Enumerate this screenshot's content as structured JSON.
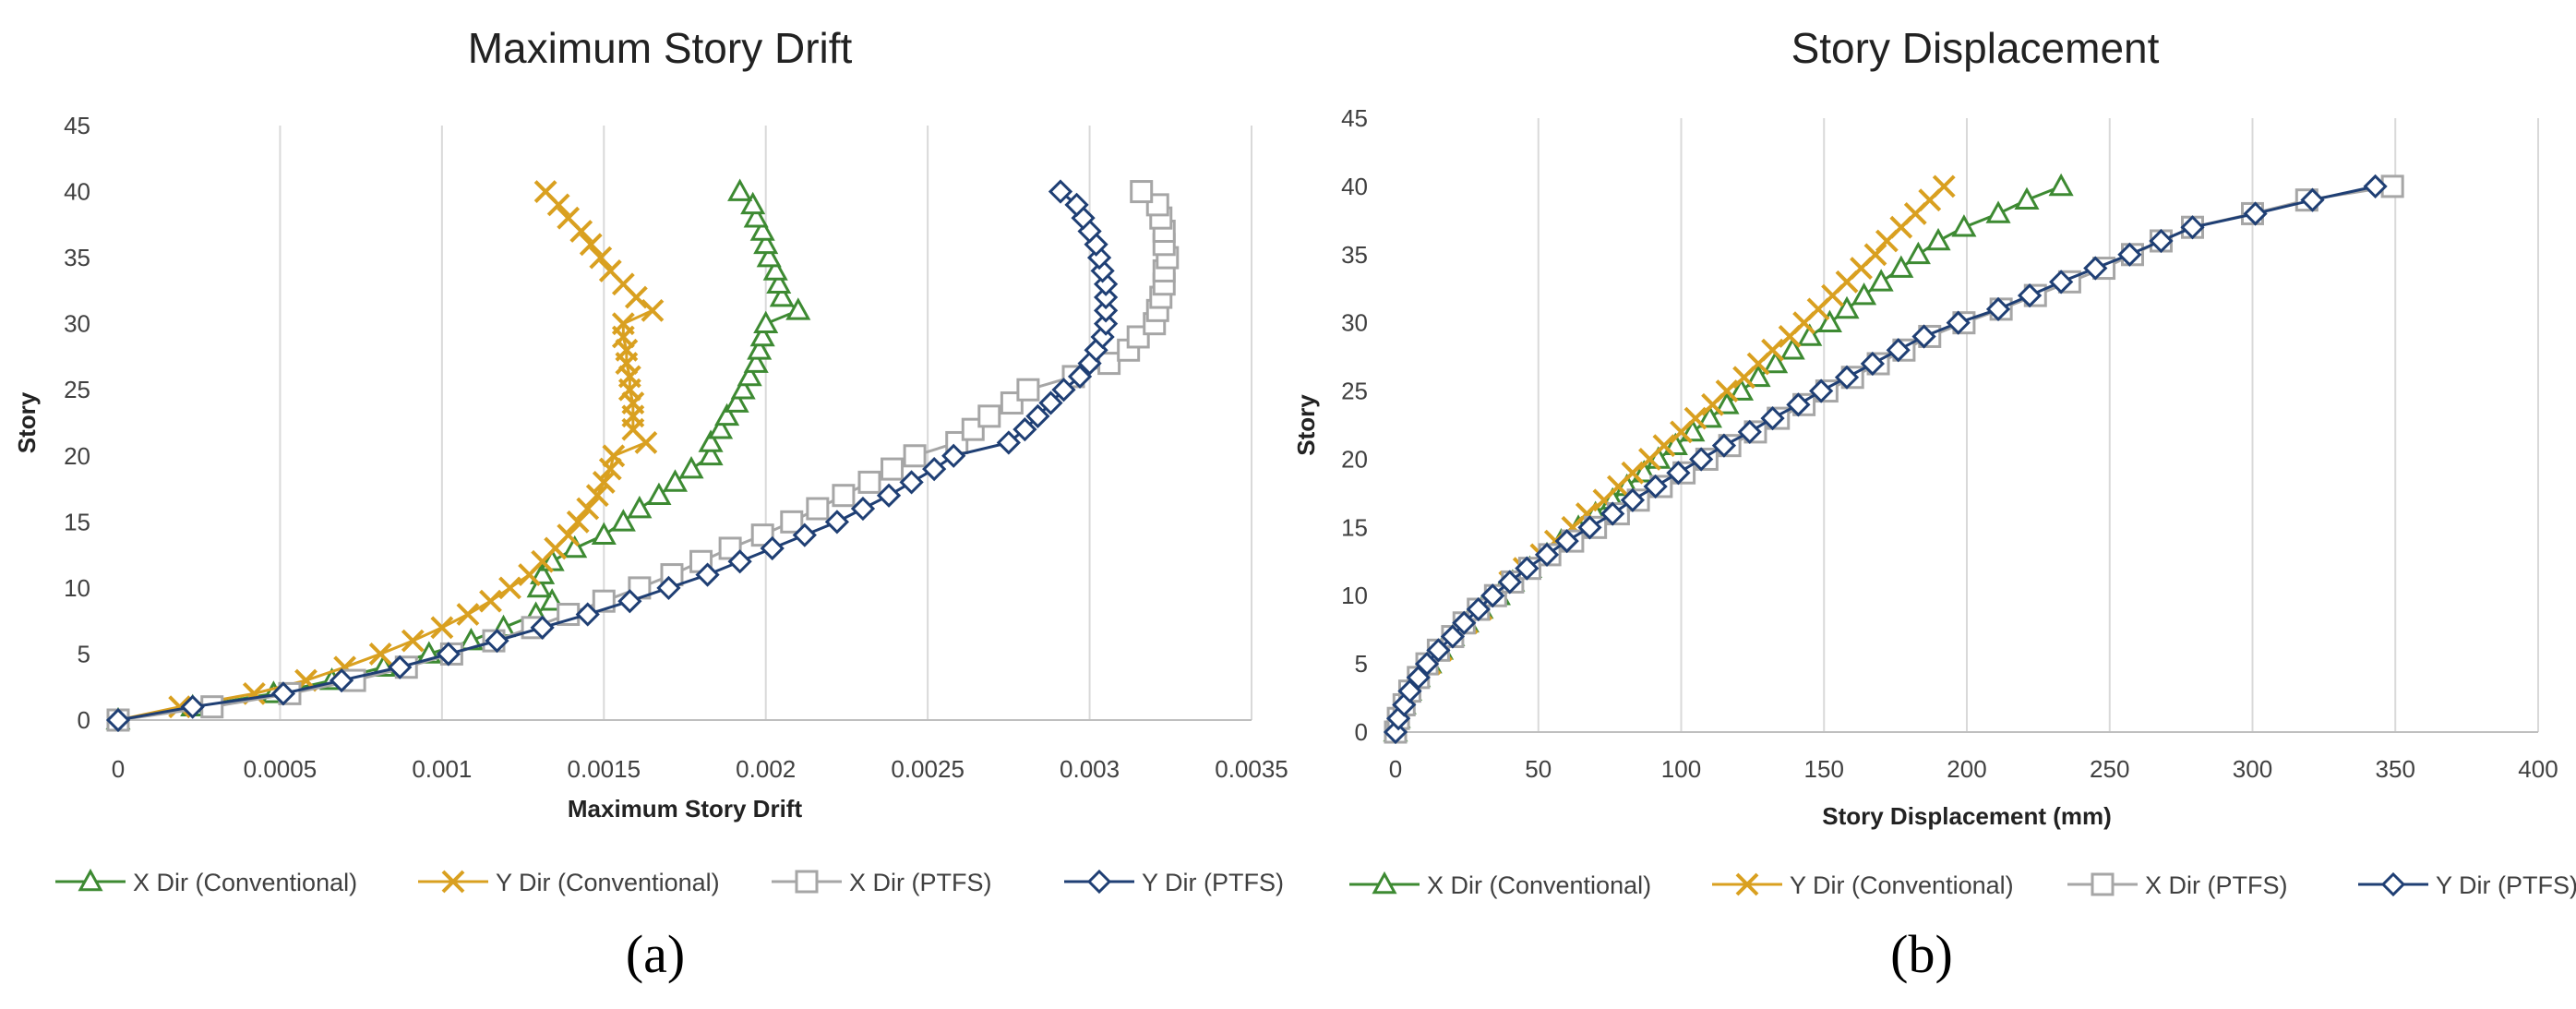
{
  "panel_labels": [
    "(a)",
    "(b)"
  ],
  "chart_data": [
    {
      "type": "line",
      "title": "Maximum Story Drift",
      "xlabel": "Maximum Story Drift",
      "ylabel": "Story",
      "xlim": [
        0,
        0.0035
      ],
      "ylim": [
        0,
        45
      ],
      "xticks": [
        0,
        0.0005,
        0.001,
        0.0015,
        0.002,
        0.0025,
        0.003,
        0.0035
      ],
      "xtick_labels": [
        "0",
        "0.0005",
        "0.001",
        "0.0015",
        "0.002",
        "0.0025",
        "0.003",
        "0.0035"
      ],
      "yticks": [
        0,
        5,
        10,
        15,
        20,
        25,
        30,
        35,
        40,
        45
      ],
      "ytick_labels": [
        "0",
        "5",
        "10",
        "15",
        "20",
        "25",
        "30",
        "35",
        "40",
        "45"
      ],
      "grid": "vertical",
      "legend_position": "bottom",
      "y": [
        0,
        1,
        2,
        3,
        4,
        5,
        6,
        7,
        8,
        9,
        10,
        11,
        12,
        13,
        14,
        15,
        16,
        17,
        18,
        19,
        20,
        21,
        22,
        23,
        24,
        25,
        26,
        27,
        28,
        29,
        30,
        31,
        32,
        33,
        34,
        35,
        36,
        37,
        38,
        39,
        40
      ],
      "series": [
        {
          "name": "X Dir (Conventional)",
          "color": "#3d8a32",
          "marker": "triangle",
          "x": [
            0,
            0.00023,
            0.00048,
            0.00066,
            0.00082,
            0.00096,
            0.00109,
            0.00119,
            0.00129,
            0.00134,
            0.0013,
            0.00131,
            0.00134,
            0.00141,
            0.0015,
            0.00156,
            0.00161,
            0.00167,
            0.00172,
            0.00177,
            0.00183,
            0.00183,
            0.00186,
            0.00188,
            0.00191,
            0.00193,
            0.00195,
            0.00197,
            0.00198,
            0.00199,
            0.002,
            0.0021,
            0.00205,
            0.00204,
            0.00203,
            0.00201,
            0.002,
            0.00199,
            0.00197,
            0.00196,
            0.00192
          ]
        },
        {
          "name": "Y Dir (Conventional)",
          "color": "#d9a020",
          "marker": "x",
          "x": [
            0,
            0.00019,
            0.00042,
            0.00058,
            0.0007,
            0.00081,
            0.00091,
            0.001,
            0.00108,
            0.00115,
            0.00121,
            0.00127,
            0.00131,
            0.00135,
            0.00139,
            0.00142,
            0.00145,
            0.00148,
            0.0015,
            0.00152,
            0.00153,
            0.00163,
            0.00159,
            0.00159,
            0.00159,
            0.00158,
            0.00158,
            0.00157,
            0.00157,
            0.00156,
            0.00156,
            0.00165,
            0.0016,
            0.00156,
            0.00152,
            0.00149,
            0.00146,
            0.00143,
            0.00139,
            0.00136,
            0.00132
          ]
        },
        {
          "name": "X Dir (PTFS)",
          "color": "#a6a6a6",
          "marker": "square",
          "x": [
            0,
            0.00029,
            0.00053,
            0.00073,
            0.00089,
            0.00103,
            0.00116,
            0.00128,
            0.00139,
            0.0015,
            0.00161,
            0.00171,
            0.0018,
            0.00189,
            0.00199,
            0.00208,
            0.00216,
            0.00224,
            0.00232,
            0.00239,
            0.00246,
            0.00259,
            0.00264,
            0.00269,
            0.00276,
            0.00281,
            0.00295,
            0.00306,
            0.00312,
            0.00315,
            0.0032,
            0.00321,
            0.00322,
            0.00323,
            0.00323,
            0.00324,
            0.00323,
            0.00323,
            0.00322,
            0.00321,
            0.00316
          ]
        },
        {
          "name": "Y Dir (PTFS)",
          "color": "#1f3f74",
          "marker": "diamond",
          "x": [
            0,
            0.00023,
            0.00051,
            0.00069,
            0.00087,
            0.00102,
            0.00117,
            0.00131,
            0.00145,
            0.00158,
            0.0017,
            0.00182,
            0.00192,
            0.00202,
            0.00212,
            0.00222,
            0.0023,
            0.00238,
            0.00245,
            0.00252,
            0.00258,
            0.00275,
            0.0028,
            0.00284,
            0.00288,
            0.00292,
            0.00297,
            0.003,
            0.00302,
            0.00304,
            0.00305,
            0.00305,
            0.00305,
            0.00305,
            0.00304,
            0.00303,
            0.00302,
            0.003,
            0.00298,
            0.00296,
            0.00291
          ]
        }
      ]
    },
    {
      "type": "line",
      "title": "Story Displacement",
      "xlabel": "Story Displacement (mm)",
      "ylabel": "Story",
      "xlim": [
        0,
        400
      ],
      "ylim": [
        0,
        45
      ],
      "xticks": [
        0,
        50,
        100,
        150,
        200,
        250,
        300,
        350,
        400
      ],
      "xtick_labels": [
        "0",
        "50",
        "100",
        "150",
        "200",
        "250",
        "300",
        "350",
        "400"
      ],
      "yticks": [
        0,
        5,
        10,
        15,
        20,
        25,
        30,
        35,
        40,
        45
      ],
      "ytick_labels": [
        "0",
        "5",
        "10",
        "15",
        "20",
        "25",
        "30",
        "35",
        "40",
        "45"
      ],
      "grid": "vertical",
      "legend_position": "bottom",
      "y": [
        0,
        1,
        2,
        3,
        4,
        5,
        6,
        7,
        8,
        9,
        10,
        11,
        12,
        13,
        14,
        15,
        16,
        17,
        18,
        19,
        20,
        21,
        22,
        23,
        24,
        25,
        26,
        27,
        28,
        29,
        30,
        31,
        32,
        33,
        34,
        35,
        36,
        37,
        38,
        39,
        40
      ],
      "series": [
        {
          "name": "X Dir (Conventional)",
          "color": "#3d8a32",
          "marker": "triangle",
          "x": [
            0,
            1,
            3,
            5,
            8,
            12,
            16,
            20,
            25,
            30,
            36,
            41,
            47,
            53,
            58,
            64,
            70,
            76,
            81,
            87,
            92,
            98,
            104,
            110,
            116,
            121,
            127,
            133,
            139,
            145,
            152,
            158,
            164,
            170,
            177,
            183,
            190,
            199,
            211,
            221,
            233
          ]
        },
        {
          "name": "Y Dir (Conventional)",
          "color": "#d9a020",
          "marker": "x",
          "x": [
            0,
            1,
            3,
            5,
            8,
            12,
            16,
            20,
            25,
            30,
            35,
            40,
            45,
            51,
            56,
            62,
            67,
            73,
            78,
            83,
            89,
            94,
            100,
            105,
            111,
            116,
            122,
            127,
            132,
            138,
            143,
            148,
            153,
            158,
            163,
            168,
            172,
            177,
            182,
            187,
            192
          ]
        },
        {
          "name": "X Dir (PTFS)",
          "color": "#a6a6a6",
          "marker": "square",
          "x": [
            0,
            1,
            3,
            5,
            8,
            11,
            15,
            20,
            24,
            29,
            35,
            41,
            47,
            54,
            62,
            70,
            78,
            85,
            93,
            101,
            109,
            117,
            126,
            134,
            143,
            151,
            160,
            169,
            178,
            187,
            199,
            212,
            224,
            236,
            248,
            258,
            268,
            279,
            300,
            319,
            349
          ]
        },
        {
          "name": "Y Dir (PTFS)",
          "color": "#1f3f74",
          "marker": "diamond",
          "x": [
            0,
            1,
            3,
            5,
            8,
            11,
            15,
            20,
            24,
            29,
            34,
            40,
            46,
            53,
            60,
            68,
            76,
            83,
            91,
            99,
            107,
            115,
            124,
            132,
            141,
            149,
            158,
            167,
            176,
            185,
            197,
            211,
            222,
            233,
            245,
            257,
            268,
            279,
            301,
            321,
            343
          ]
        }
      ]
    }
  ]
}
